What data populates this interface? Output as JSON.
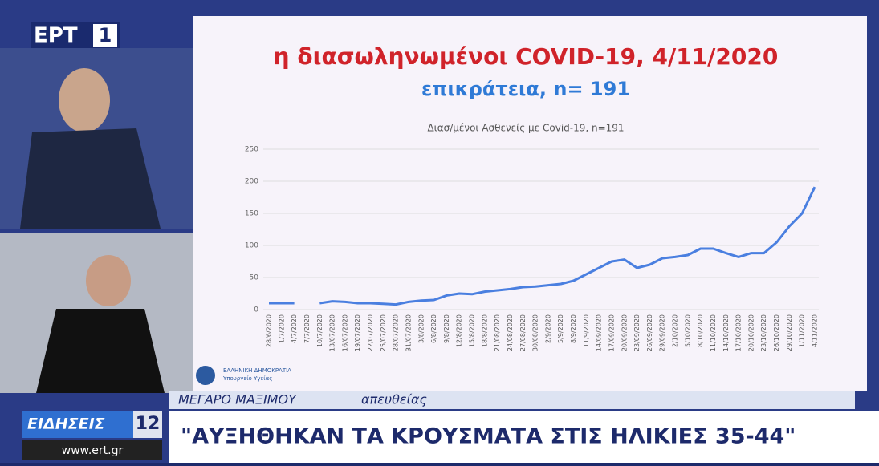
{
  "broadcast": {
    "channel": "ΕΡΤ",
    "channel_number": "1",
    "location": "ΜΕΓΑΡΟ ΜΑΞΙΜΟΥ",
    "live": "απευθείας",
    "news_label": "ΕΙΔΗΣΕΙΣ",
    "news_number": "12",
    "website": "www.ert.gr",
    "headline": "\"ΑΥΞΗΘΗΚΑΝ ΤΑ ΚΡΟΥΣΜΑΤΑ ΣΤΙΣ ΗΛΙΚΙΕΣ 35-44\""
  },
  "slide": {
    "heading": "η διασωληνωμένοι COVID-19, 4/11/2020",
    "subheading": "επικράτεια, n= 191",
    "org": "ΕΛΛΗΝΙΚΗ ΔΗΜΟΚΡΑΤΙΑ",
    "ministry": "Υπουργείο Υγείας"
  },
  "chart_data": {
    "type": "line",
    "title": "Διασ/μένοι Ασθενείς με Covid-19, n=191",
    "categories": [
      "28/6/2020",
      "1/7/2020",
      "4/7/2020",
      "7/7/2020",
      "10/7/2020",
      "13/07/2020",
      "16/07/2020",
      "19/07/2020",
      "22/07/2020",
      "25/07/2020",
      "28/07/2020",
      "31/07/2020",
      "3/8/2020",
      "6/8/2020",
      "9/8/2020",
      "12/8/2020",
      "15/8/2020",
      "18/8/2020",
      "21/08/2020",
      "24/08/2020",
      "27/08/2020",
      "30/08/2020",
      "2/9/2020",
      "5/9/2020",
      "8/9/2020",
      "11/9/2020",
      "14/09/2020",
      "17/09/2020",
      "20/09/2020",
      "23/09/2020",
      "26/09/2020",
      "29/09/2020",
      "2/10/2020",
      "5/10/2020",
      "8/10/2020",
      "11/10/2020",
      "14/10/2020",
      "17/10/2020",
      "20/10/2020",
      "23/10/2020",
      "26/10/2020",
      "29/10/2020",
      "1/11/2020",
      "4/11/2020"
    ],
    "values": [
      10,
      10,
      10,
      null,
      10,
      13,
      12,
      10,
      10,
      9,
      8,
      12,
      14,
      15,
      22,
      25,
      24,
      28,
      30,
      32,
      35,
      36,
      38,
      40,
      45,
      55,
      65,
      75,
      78,
      65,
      70,
      80,
      82,
      85,
      95,
      95,
      88,
      82,
      88,
      88,
      105,
      130,
      150,
      191
    ],
    "color": "#4a7fe0",
    "ylim": [
      0,
      250
    ],
    "yticks": [
      0,
      50,
      100,
      150,
      200,
      250
    ],
    "grid": true
  }
}
